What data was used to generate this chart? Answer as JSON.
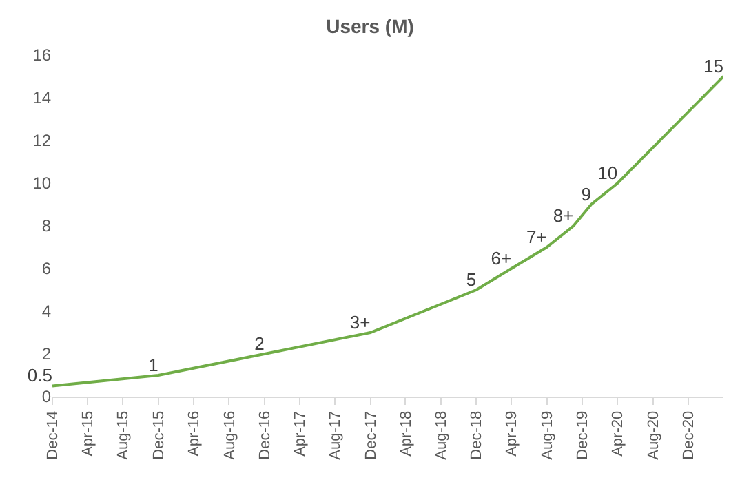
{
  "chart_data": {
    "type": "line",
    "title": "Users (M)",
    "x": [
      "2014-12",
      "2015-12",
      "2016-12",
      "2017-12",
      "2018-12",
      "2019-04",
      "2019-08",
      "2019-11",
      "2020-01",
      "2020-04",
      "2021-04"
    ],
    "series": [
      {
        "color": "#70ad47",
        "values": [
          0.5,
          1,
          2,
          3,
          5,
          6,
          7,
          8,
          9,
          10,
          15
        ],
        "value_labels": [
          "0.5",
          "1",
          "2",
          "3+",
          "5",
          "6+",
          "7+",
          "8+",
          "9",
          "10",
          "15"
        ]
      }
    ],
    "xlim": [
      "2014-12",
      "2021-04"
    ],
    "xticks": [
      {
        "value": "2014-12",
        "label": "Dec-14"
      },
      {
        "value": "2015-04",
        "label": "Apr-15"
      },
      {
        "value": "2015-08",
        "label": "Aug-15"
      },
      {
        "value": "2015-12",
        "label": "Dec-15"
      },
      {
        "value": "2016-04",
        "label": "Apr-16"
      },
      {
        "value": "2016-08",
        "label": "Aug-16"
      },
      {
        "value": "2016-12",
        "label": "Dec-16"
      },
      {
        "value": "2017-04",
        "label": "Apr-17"
      },
      {
        "value": "2017-08",
        "label": "Aug-17"
      },
      {
        "value": "2017-12",
        "label": "Dec-17"
      },
      {
        "value": "2018-04",
        "label": "Apr-18"
      },
      {
        "value": "2018-08",
        "label": "Aug-18"
      },
      {
        "value": "2018-12",
        "label": "Dec-18"
      },
      {
        "value": "2019-04",
        "label": "Apr-19"
      },
      {
        "value": "2019-08",
        "label": "Aug-19"
      },
      {
        "value": "2019-12",
        "label": "Dec-19"
      },
      {
        "value": "2020-04",
        "label": "Apr-20"
      },
      {
        "value": "2020-08",
        "label": "Aug-20"
      },
      {
        "value": "2020-12",
        "label": "Dec-20"
      }
    ],
    "ylim": [
      0,
      16
    ],
    "yticks": [
      0,
      2,
      4,
      6,
      8,
      10,
      12,
      14,
      16
    ],
    "grid": false,
    "marker": "none",
    "line_style": "solid"
  }
}
